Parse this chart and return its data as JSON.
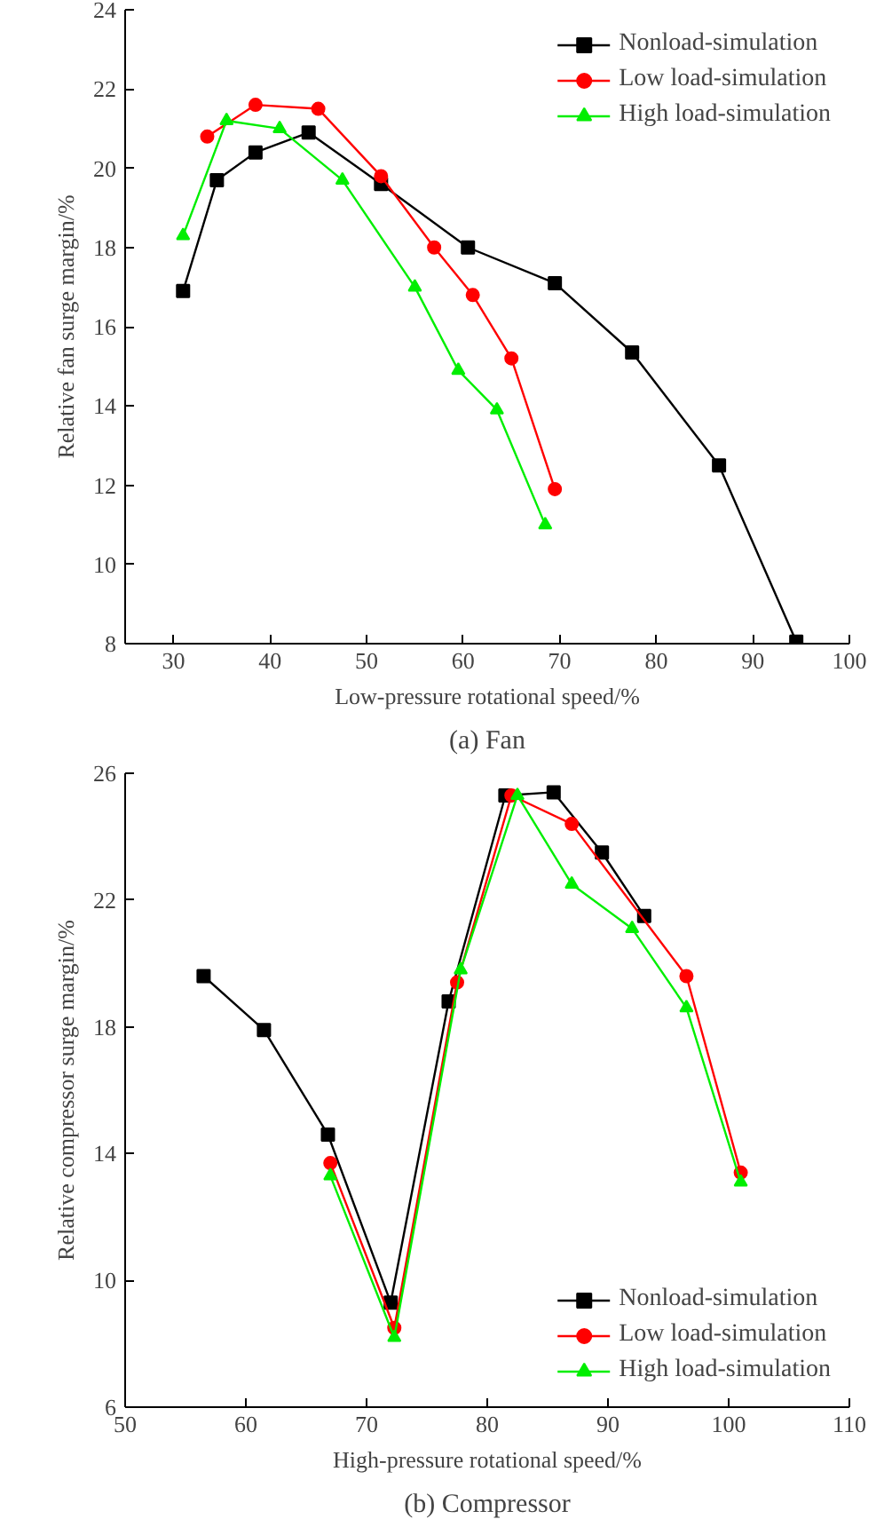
{
  "chart_data": [
    {
      "type": "line",
      "xlabel": "Low-pressure rotational speed/%",
      "ylabel": "Relative fan surge margin/%",
      "xlim": [
        25,
        100
      ],
      "xticks": [
        30,
        40,
        50,
        60,
        70,
        80,
        90,
        100
      ],
      "ylim": [
        8,
        24
      ],
      "yticks": [
        8,
        10,
        12,
        14,
        16,
        18,
        20,
        22,
        24
      ],
      "grid": false,
      "legend": "top right",
      "annotations": [
        "(a) Fan"
      ],
      "series": [
        {
          "name": "Nonload-simulation",
          "color": "#000000",
          "marker": "square",
          "x": [
            31,
            34.5,
            38.5,
            44,
            51.5,
            60.5,
            69.5,
            77.5,
            86.5,
            94.5
          ],
          "values": [
            16.9,
            19.7,
            20.4,
            20.9,
            19.6,
            18.0,
            17.1,
            15.35,
            12.5,
            8.05
          ]
        },
        {
          "name": "Low load-simulation",
          "color": "#ff0000",
          "marker": "circle",
          "x": [
            33.5,
            38.5,
            45,
            51.5,
            57,
            61,
            65,
            69.5
          ],
          "values": [
            20.8,
            21.6,
            21.5,
            19.8,
            18.0,
            16.8,
            15.2,
            11.9
          ]
        },
        {
          "name": "High load-simulation",
          "color": "#00ee00",
          "marker": "triangle",
          "x": [
            31,
            35.5,
            41,
            47.5,
            55,
            59.5,
            63.5,
            68.5
          ],
          "values": [
            18.3,
            21.2,
            21.0,
            19.7,
            17.0,
            14.9,
            13.9,
            11.0
          ]
        }
      ]
    },
    {
      "type": "line",
      "xlabel": "High-pressure rotational speed/%",
      "ylabel": "Relative compressor surge margin/%",
      "xlim": [
        50,
        110
      ],
      "xticks": [
        50,
        60,
        70,
        80,
        90,
        100,
        110
      ],
      "ylim": [
        6,
        26
      ],
      "yticks": [
        6,
        10,
        14,
        18,
        22,
        26
      ],
      "grid": false,
      "legend": "bottom right",
      "annotations": [
        "(b) Compressor"
      ],
      "series": [
        {
          "name": "Nonload-simulation",
          "color": "#000000",
          "marker": "square",
          "x": [
            56.5,
            61.5,
            66.8,
            72,
            76.8,
            81.5,
            85.5,
            89.5,
            93
          ],
          "values": [
            19.6,
            17.9,
            14.6,
            9.3,
            18.8,
            25.3,
            25.4,
            23.5,
            21.5
          ]
        },
        {
          "name": "Low load-simulation",
          "color": "#ff0000",
          "marker": "circle",
          "x": [
            67,
            72.3,
            77.5,
            82,
            87,
            96.5,
            101
          ],
          "values": [
            13.7,
            8.5,
            19.4,
            25.3,
            24.4,
            19.6,
            13.4
          ]
        },
        {
          "name": "High load-simulation",
          "color": "#00ee00",
          "marker": "triangle",
          "x": [
            67,
            72.3,
            77.8,
            82.5,
            87,
            92,
            96.5,
            101
          ],
          "values": [
            13.3,
            8.2,
            19.8,
            25.3,
            22.5,
            21.1,
            18.6,
            13.1
          ]
        }
      ]
    }
  ]
}
